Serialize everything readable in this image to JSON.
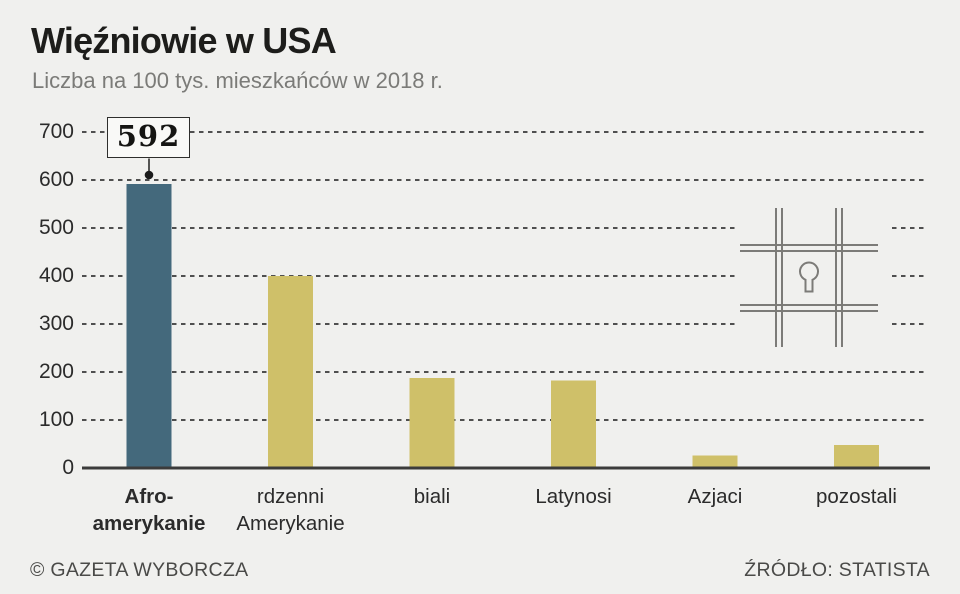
{
  "title": "Więźniowie w USA",
  "subtitle": "Liczba na 100 tys. mieszkańców w 2018 r.",
  "footer": {
    "left": "© GAZETA WYBORCZA",
    "right": "ŹRÓDŁO: STATISTA"
  },
  "icon": {
    "name": "prison-bars-with-keyhole"
  },
  "colors": {
    "background": "#f0f0ee",
    "bar_highlight": "#44697c",
    "bar_default": "#cfc069",
    "grid": "#4f4f4f",
    "axis": "#3b3b3b",
    "icon": "#7c7b78",
    "title_text": "#1d1d1b",
    "subtitle_text": "#7b7b78",
    "label_text": "#2b2b2b",
    "footer_text": "#4a4a48",
    "callout_bg": "#f9f9f7",
    "callout_border": "#2e2e2c"
  },
  "chart_data": {
    "type": "bar",
    "title": "Więźniowie w USA",
    "subtitle": "Liczba na 100 tys. mieszkańców w 2018 r.",
    "categories": [
      "Afro-\namerykanie",
      "rdzenni\nAmerykanie",
      "biali",
      "Latynosi",
      "Azjaci",
      "pozostali"
    ],
    "values": [
      592,
      400,
      187,
      182,
      26,
      48
    ],
    "highlight_index": 0,
    "ylim": [
      0,
      700
    ],
    "yticks": [
      0,
      100,
      200,
      300,
      400,
      500,
      600,
      700
    ],
    "grid": "horizontal-dashed",
    "legend": "none",
    "annotation": {
      "text": "592",
      "category_index": 0
    },
    "source": "STATISTA"
  }
}
